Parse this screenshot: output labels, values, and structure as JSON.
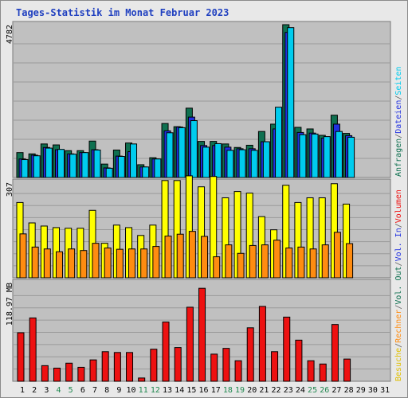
{
  "title": "Tages-Statistik im Monat Februar 2023",
  "colors": {
    "anfragen": "#0f7050",
    "dateien": "#2030e0",
    "seiten": "#00ccee",
    "besuche": "#ffff00",
    "rechner": "#ff8c10",
    "volumen": "#ee1111",
    "weekend_label": "#208850",
    "panel_bg": "#c0c0c0"
  },
  "legend": {
    "panel1": [
      {
        "text": "Anfragen",
        "color": "#0f7050"
      },
      {
        "text": "/",
        "color": "#606060"
      },
      {
        "text": "Dateien",
        "color": "#2030e0"
      },
      {
        "text": "/",
        "color": "#606060"
      },
      {
        "text": "Seiten",
        "color": "#00ccee"
      }
    ],
    "panel2": [
      {
        "text": "Besuche",
        "color": "#e0c000"
      },
      {
        "text": "/",
        "color": "#606060"
      },
      {
        "text": "Rechner",
        "color": "#ff8c10"
      },
      {
        "text": "/",
        "color": "#606060"
      },
      {
        "text": "Vol. Out",
        "color": "#0f7050"
      },
      {
        "text": "/",
        "color": "#606060"
      },
      {
        "text": "Vol. In",
        "color": "#2030e0"
      },
      {
        "text": "/",
        "color": "#606060"
      },
      {
        "text": "Volumen",
        "color": "#ee1111"
      }
    ]
  },
  "chart_data": {
    "type": "bar",
    "days": [
      "1",
      "2",
      "3",
      "4",
      "5",
      "6",
      "7",
      "8",
      "9",
      "10",
      "11",
      "12",
      "13",
      "14",
      "15",
      "16",
      "17",
      "18",
      "19",
      "20",
      "21",
      "22",
      "23",
      "24",
      "25",
      "26",
      "27",
      "28",
      "29",
      "30",
      "31"
    ],
    "weekend_days": [
      "4",
      "5",
      "11",
      "12",
      "18",
      "19",
      "25",
      "26"
    ],
    "panels": [
      {
        "ymax": 4782,
        "ymax_label": "4782",
        "series": [
          {
            "name": "Anfragen",
            "values": [
              780,
              740,
              1050,
              1020,
              840,
              840,
              1140,
              420,
              860,
              1080,
              400,
              620,
              1690,
              1590,
              2170,
              1130,
              1130,
              1050,
              940,
              1010,
              1440,
              1670,
              4782,
              1570,
              1520,
              1320,
              1950,
              1380,
              null,
              null,
              null
            ]
          },
          {
            "name": "Dateien",
            "values": [
              580,
              700,
              940,
              870,
              740,
              780,
              870,
              300,
              670,
              810,
              330,
              580,
              1460,
              1580,
              1890,
              1000,
              1000,
              950,
              900,
              900,
              1120,
              1520,
              4540,
              1410,
              1390,
              1230,
              1670,
              1310,
              null,
              null,
              null
            ]
          },
          {
            "name": "Seiten",
            "values": [
              560,
              680,
              920,
              880,
              730,
              780,
              860,
              290,
              660,
              1050,
              330,
              580,
              1400,
              1560,
              1780,
              950,
              1060,
              850,
              870,
              850,
              1120,
              2200,
              4690,
              1340,
              1360,
              1280,
              1440,
              1260,
              null,
              null,
              null
            ]
          }
        ]
      },
      {
        "ymax": 307,
        "ymax_label": "307",
        "series": [
          {
            "name": "Besuche",
            "values": [
              240,
              175,
              165,
              160,
              158,
              158,
              215,
              110,
              168,
              160,
              135,
              168,
              310,
              310,
              325,
              290,
              323,
              255,
              275,
              270,
              195,
              153,
              295,
              240,
              255,
              255,
              300,
              235,
              null,
              null,
              null
            ]
          },
          {
            "name": "Rechner",
            "values": [
              140,
              98,
              92,
              83,
              92,
              87,
              110,
              95,
              91,
              92,
              92,
              100,
              133,
              139,
              148,
              132,
              67,
              105,
              78,
              103,
              105,
              120,
              95,
              98,
              92,
              105,
              145,
              109,
              null,
              null,
              null
            ]
          }
        ]
      },
      {
        "ymax": 118.97,
        "ymax_label": "118.97 MB",
        "series": [
          {
            "name": "Volumen",
            "values": [
              59,
              77,
              19,
              16,
              22,
              17,
              26,
              36,
              35,
              35,
              4,
              39,
              72,
              41,
              90,
              113,
              33,
              40,
              25,
              65,
              91,
              36,
              78,
              50,
              25,
              21,
              69,
              27,
              null,
              null,
              null
            ]
          }
        ]
      }
    ]
  }
}
